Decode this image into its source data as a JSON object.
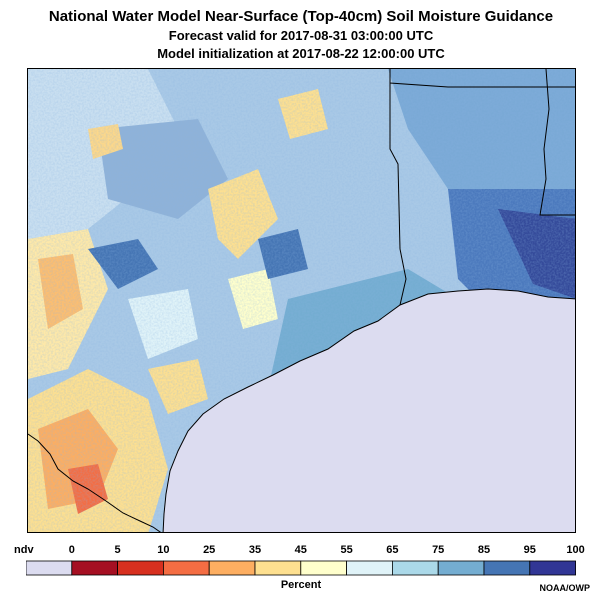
{
  "title": "National Water Model Near-Surface (Top-40cm) Soil Moisture Guidance",
  "forecast_line": "Forecast valid for 2017-08-31 03:00:00 UTC",
  "init_line": "Model initialization at 2017-08-22 12:00:00 UTC",
  "legend": {
    "ndv_label": "ndv",
    "ndv_color": "#dcdcf0",
    "ticks": [
      "0",
      "5",
      "10",
      "25",
      "35",
      "45",
      "55",
      "65",
      "75",
      "85",
      "95",
      "100"
    ],
    "bins": [
      {
        "from": 0,
        "to": 5,
        "color": "#a50f22"
      },
      {
        "from": 5,
        "to": 10,
        "color": "#d7301f"
      },
      {
        "from": 10,
        "to": 25,
        "color": "#f46d43"
      },
      {
        "from": 25,
        "to": 35,
        "color": "#fdae61"
      },
      {
        "from": 35,
        "to": 45,
        "color": "#fee090"
      },
      {
        "from": 45,
        "to": 55,
        "color": "#ffffcc"
      },
      {
        "from": 55,
        "to": 65,
        "color": "#e0f3f8"
      },
      {
        "from": 65,
        "to": 75,
        "color": "#abd9e9"
      },
      {
        "from": 75,
        "to": 85,
        "color": "#74add1"
      },
      {
        "from": 85,
        "to": 95,
        "color": "#4575b4"
      },
      {
        "from": 95,
        "to": 100,
        "color": "#313695"
      }
    ],
    "unit_label": "Percent"
  },
  "map": {
    "water_color": "#dcdcf0",
    "boundary_color": "#000000"
  },
  "credit": "NOAA/OWP"
}
